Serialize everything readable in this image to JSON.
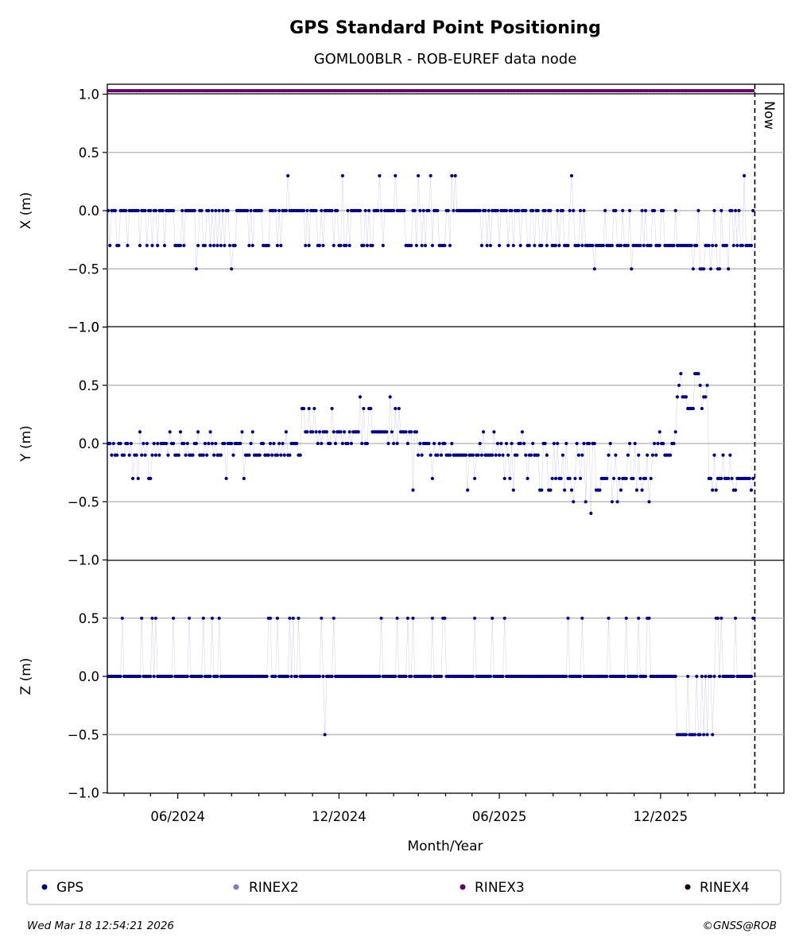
{
  "title": "GPS Standard Point Positioning",
  "subtitle": "GOML00BLR - ROB-EUREF data node",
  "now_label": "Now",
  "footer_left": "Wed Mar 18 12:54:21 2026",
  "footer_right": "©GNSS@ROB",
  "colors": {
    "gps": "#00008b",
    "rinex2": "#7b7bc7",
    "rinex3": "#660066",
    "rinex4": "#1a0010",
    "grid": "#b0b0b0"
  },
  "chart_data": [
    {
      "type": "scatter",
      "ylabel": "X (m)",
      "ylim": [
        -1.0,
        1.0
      ],
      "yticks": [
        "1.0",
        "0.5",
        "0.0",
        "−0.5",
        "−1.0"
      ],
      "grid": true,
      "series": [
        {
          "name": "GPS",
          "y_levels": [
            0.3,
            0.0,
            -0.3,
            -0.5
          ]
        }
      ],
      "rinex_band": {
        "name": "RINEX3",
        "y": 1.03
      }
    },
    {
      "type": "scatter",
      "ylabel": "Y (m)",
      "ylim": [
        -1.0,
        1.0
      ],
      "yticks": [
        "−1.0",
        "0.5",
        "0.0",
        "−0.5"
      ],
      "grid": true,
      "series": [
        {
          "name": "GPS",
          "y_levels": [
            0.6,
            0.5,
            0.4,
            0.3,
            0.1,
            0.0,
            -0.1,
            -0.3,
            -0.4,
            -0.5,
            -0.6
          ]
        }
      ]
    },
    {
      "type": "scatter",
      "ylabel": "Z (m)",
      "xlabel": "Month/Year",
      "ylim": [
        -1.0,
        1.0
      ],
      "yticks": [
        "−1.0",
        "0.5",
        "0.0",
        "−0.5",
        "−1.0"
      ],
      "xticks": [
        "06/2024",
        "12/2024",
        "06/2025",
        "12/2025"
      ],
      "x_range": [
        "2024-03-13",
        "2026-04-20"
      ],
      "now": "2026-03-18",
      "grid": true,
      "series": [
        {
          "name": "GPS",
          "y_levels": [
            0.5,
            0.0,
            -0.5
          ]
        }
      ]
    }
  ],
  "legend": [
    {
      "label": "GPS",
      "color": "#00008b"
    },
    {
      "label": "RINEX2",
      "color": "#7b7bc7"
    },
    {
      "label": "RINEX3",
      "color": "#660066"
    },
    {
      "label": "RINEX4",
      "color": "#1a0010"
    }
  ]
}
